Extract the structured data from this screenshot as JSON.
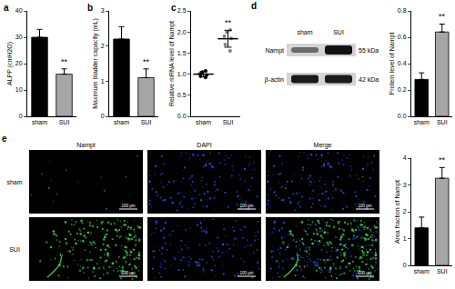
{
  "chart_data": [
    {
      "panel": "a",
      "type": "bar",
      "categories": [
        "sham",
        "SUI"
      ],
      "values": [
        30,
        16
      ],
      "errors": [
        3,
        2
      ],
      "colors": [
        "#000000",
        "#a6a6a6"
      ],
      "y_label": "ALPP (cmH2O)",
      "ylim": [
        0,
        40
      ],
      "yticks": [
        0,
        10,
        20,
        30,
        40
      ],
      "annotations": [
        {
          "category": "SUI",
          "text": "**"
        }
      ]
    },
    {
      "panel": "b",
      "type": "bar",
      "categories": [
        "sham",
        "SUI"
      ],
      "values": [
        2.2,
        1.1
      ],
      "errors": [
        0.35,
        0.25
      ],
      "colors": [
        "#000000",
        "#a6a6a6"
      ],
      "y_label": "Maximum bladder capacity (mL)",
      "ylim": [
        0,
        3
      ],
      "yticks": [
        0,
        1,
        2,
        3
      ],
      "annotations": [
        {
          "category": "SUI",
          "text": "**"
        }
      ]
    },
    {
      "panel": "c",
      "type": "scatter",
      "categories": [
        "sham",
        "SUI"
      ],
      "values": [
        1.0,
        1.84
      ],
      "errors": [
        0.06,
        0.2
      ],
      "points": [
        [
          0.92,
          1.05,
          0.98,
          1.08,
          1.0,
          0.95
        ],
        [
          1.55,
          1.7,
          1.85,
          2.05,
          1.9,
          2.0
        ]
      ],
      "colors": [
        "#000000",
        "#808080"
      ],
      "y_label": "Relative mRNA level of Nampt",
      "ylim": [
        0,
        2.5
      ],
      "yticks": [
        {
          "value": 0,
          "label": "0.0"
        },
        {
          "value": 0.5,
          "label": "0.5"
        },
        {
          "value": 1,
          "label": "1.0"
        },
        {
          "value": 1.5,
          "label": "1.5"
        },
        {
          "value": 2,
          "label": "2.0"
        },
        {
          "value": 2.5,
          "label": "2.5"
        }
      ],
      "annotations": [
        {
          "category": "SUI",
          "text": "**"
        }
      ]
    },
    {
      "type": "bar",
      "categories": [
        "sham",
        "SUI"
      ],
      "values": [
        0.28,
        0.64
      ],
      "errors": [
        0.05,
        0.06
      ],
      "colors": [
        "#000000",
        "#a6a6a6"
      ],
      "y_label": "Protein level of Nampt",
      "ylim": [
        0,
        0.8
      ],
      "yticks": [
        {
          "value": 0,
          "label": "0.0"
        },
        {
          "value": 0.2,
          "label": "0.2"
        },
        {
          "value": 0.4,
          "label": "0.4"
        },
        {
          "value": 0.6,
          "label": "0.6"
        },
        {
          "value": 0.8,
          "label": "0.8"
        }
      ],
      "annotations": [
        {
          "category": "SUI",
          "text": "**"
        }
      ]
    },
    {
      "type": "bar",
      "categories": [
        "sham",
        "SUI"
      ],
      "values": [
        1.4,
        3.25
      ],
      "errors": [
        0.4,
        0.4
      ],
      "colors": [
        "#000000",
        "#a6a6a6"
      ],
      "y_label": "Area fraction of Nampt",
      "ylim": [
        0,
        4
      ],
      "yticks": [
        0,
        1,
        2,
        3,
        4
      ],
      "annotations": [
        {
          "category": "SUI",
          "text": "**"
        }
      ]
    }
  ],
  "blot": {
    "panel": "d",
    "lanes": [
      "sham",
      "SUI"
    ],
    "rows": [
      {
        "label": "Nampt",
        "size": "55 kDa"
      },
      {
        "label": "β-actin",
        "size": "42 kDa"
      }
    ]
  },
  "micrographs": {
    "panel": "e",
    "columns": [
      "Nampt",
      "DAPI",
      "Merge"
    ],
    "rows": [
      "sham",
      "SUI"
    ],
    "scale_bar": "100 μm"
  }
}
